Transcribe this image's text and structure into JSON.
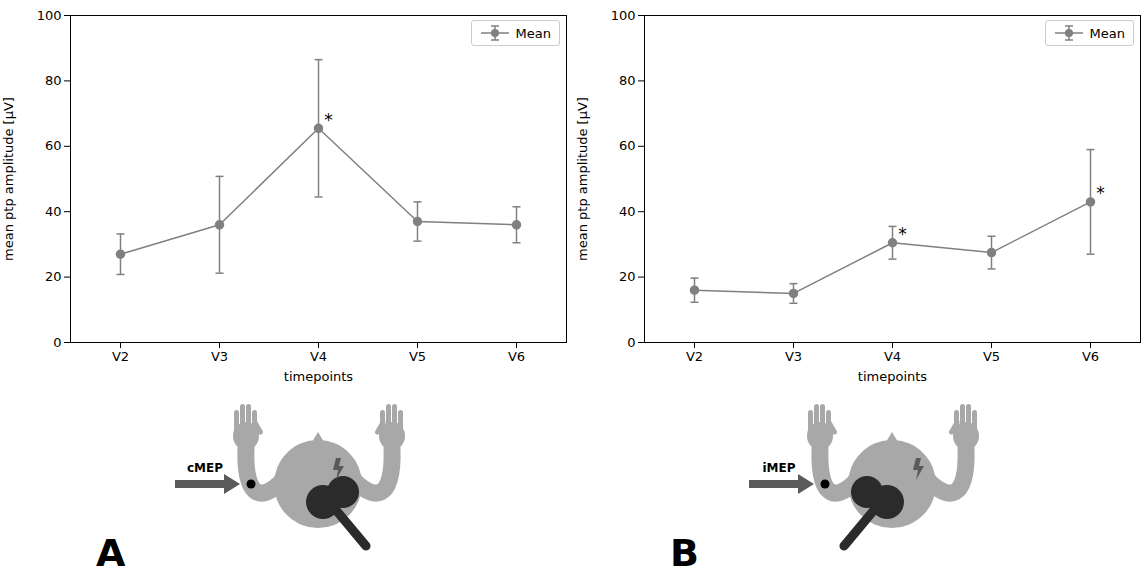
{
  "chart_data": [
    {
      "type": "line",
      "panel": "A",
      "diagram_label": "cMEP",
      "categories": [
        "V2",
        "V3",
        "V4",
        "V5",
        "V6"
      ],
      "series": [
        {
          "name": "Mean",
          "color": "#808080",
          "marker": "circle",
          "line_style": "solid",
          "values": [
            27,
            36,
            65.5,
            37,
            36
          ],
          "errors": [
            6.2,
            14.8,
            21,
            6,
            5.5
          ]
        }
      ],
      "annotations": [
        {
          "x": "V4",
          "text": "*"
        }
      ],
      "x_label": "timepoints",
      "y_label": "mean ptp amplitude [µV]",
      "ylim": [
        0,
        100
      ],
      "yticks": [
        0,
        20,
        40,
        60,
        80,
        100
      ],
      "legend": "upper right",
      "grid": false
    },
    {
      "type": "line",
      "panel": "B",
      "diagram_label": "iMEP",
      "categories": [
        "V2",
        "V3",
        "V4",
        "V5",
        "V6"
      ],
      "series": [
        {
          "name": "Mean",
          "color": "#808080",
          "marker": "circle",
          "line_style": "solid",
          "values": [
            16,
            15,
            30.5,
            27.5,
            43
          ],
          "errors": [
            3.7,
            3,
            5,
            5,
            16
          ]
        }
      ],
      "annotations": [
        {
          "x": "V4",
          "text": "*"
        },
        {
          "x": "V6",
          "text": "*"
        }
      ],
      "x_label": "timepoints",
      "y_label": "mean ptp amplitude [µV]",
      "ylim": [
        0,
        100
      ],
      "yticks": [
        0,
        20,
        40,
        60,
        80,
        100
      ],
      "legend": "upper right",
      "grid": false
    }
  ]
}
